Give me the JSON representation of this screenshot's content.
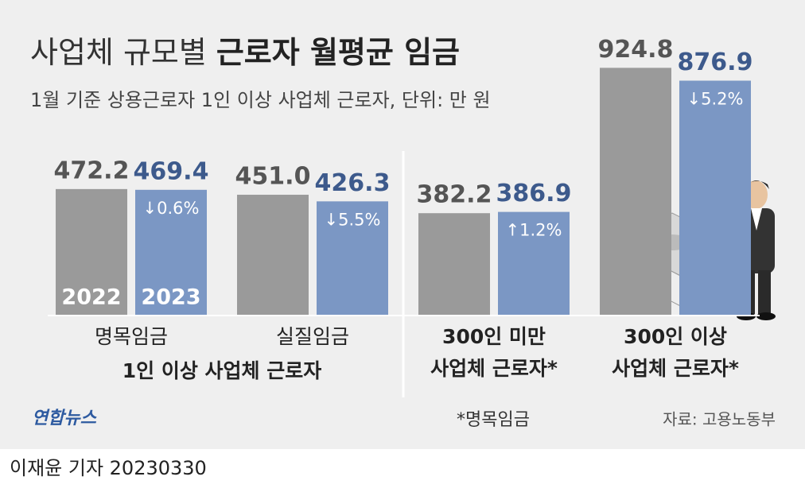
{
  "chart_data": {
    "type": "bar",
    "title": [
      "사업체 규모별",
      "근로자 월평균 임금"
    ],
    "subtitle": "1월 기준 상용근로자 1인 이상 사업체 근로자, 단위: 만 원",
    "categories": [
      [
        "명목임금"
      ],
      [
        "실질임금"
      ],
      [
        "300인 미만",
        "사업체 근로자*"
      ],
      [
        "300인 이상",
        "사업체 근로자*"
      ]
    ],
    "group_label": "1인 이상 사업체 근로자",
    "series": [
      {
        "name": "2022",
        "color": "#9a9a9a",
        "values": [
          472.2,
          451.0,
          382.2,
          924.8
        ],
        "value_labels": [
          "472.2",
          "451.0",
          "382.2",
          "924.8"
        ]
      },
      {
        "name": "2023",
        "color": "#7b97c4",
        "values": [
          469.4,
          426.3,
          386.9,
          876.9
        ],
        "change_labels": [
          "↓0.6%",
          "↓5.5%",
          "↑1.2%",
          "↓5.2%"
        ]
      }
    ],
    "ylim": [
      0,
      1000
    ],
    "footnote": "*명목임금",
    "source": "자료: 고용노동부",
    "logo": "연합뉴스",
    "byline": "이재윤 기자 20230330"
  }
}
